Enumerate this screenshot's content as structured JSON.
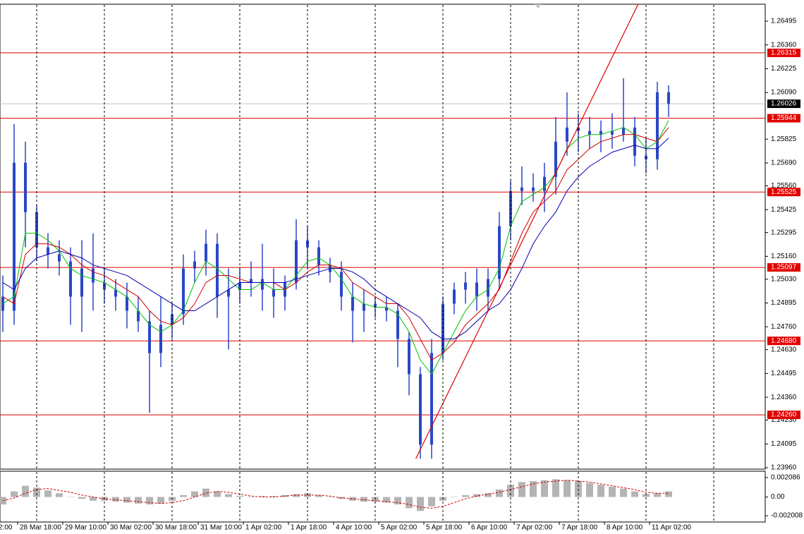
{
  "chart_data": [
    {
      "type": "candlestick",
      "color": "#2a47c8",
      "x_labels": [
        "2:00",
        "28 Mar 18:00",
        "29 Mar 10:00",
        "30 Mar 02:00",
        "30 Mar 18:00",
        "31 Mar 10:00",
        "1 Apr 02:00",
        "1 Apr 18:00",
        "4 Apr 10:00",
        "5 Apr 02:00",
        "5 Apr 18:00",
        "6 Apr 10:00",
        "7 Apr 02:00",
        "7 Apr 18:00",
        "8 Apr 10:00",
        "11 Apr 02:00"
      ],
      "open": [
        1.24931,
        1.24851,
        1.25691,
        1.25411,
        1.25211,
        1.25171,
        1.25131,
        1.24931,
        1.25091,
        1.25011,
        1.24971,
        1.24931,
        1.24851,
        1.24791,
        1.24611,
        1.24771,
        1.24831,
        1.25091,
        1.25131,
        1.25231,
        1.24931,
        1.24971,
        1.25011,
        1.25031,
        1.24971,
        1.24931,
        1.25011,
        1.25251,
        1.25211,
        1.25111,
        1.25071,
        1.24931,
        1.24851,
        1.24891,
        1.24871,
        1.24851,
        1.24691,
        1.24491,
        1.24091,
        1.24611,
        1.24891,
        1.24971,
        1.25011,
        1.24931,
        1.25031,
        1.25331,
        1.25531,
        1.25551,
        1.25531,
        1.25611,
        1.25811,
        1.25891,
        1.25871,
        1.25851,
        1.25871,
        1.25851,
        1.25891,
        1.25731,
        1.25711,
        1.26091
      ],
      "high": [
        1.25051,
        1.25911,
        1.25811,
        1.25451,
        1.25291,
        1.25251,
        1.25211,
        1.25251,
        1.25291,
        1.25091,
        1.25031,
        1.25011,
        1.24931,
        1.24851,
        1.24931,
        1.24891,
        1.25171,
        1.25191,
        1.25311,
        1.25291,
        1.25091,
        1.25091,
        1.25131,
        1.25231,
        1.25091,
        1.25051,
        1.25371,
        1.25331,
        1.25251,
        1.25151,
        1.25131,
        1.25011,
        1.24971,
        1.24931,
        1.24931,
        1.24891,
        1.24731,
        1.24531,
        1.24691,
        1.24931,
        1.25011,
        1.25071,
        1.25091,
        1.25091,
        1.25411,
        1.25591,
        1.25671,
        1.25631,
        1.25691,
        1.25951,
        1.26091,
        1.25971,
        1.25951,
        1.25931,
        1.25971,
        1.26171,
        1.25951,
        1.25831,
        1.26151,
        1.26131
      ],
      "low": [
        1.24731,
        1.24771,
        1.25211,
        1.25131,
        1.25091,
        1.25051,
        1.24771,
        1.24731,
        1.24851,
        1.24891,
        1.24851,
        1.24751,
        1.24731,
        1.24271,
        1.24531,
        1.24691,
        1.24771,
        1.25011,
        1.25051,
        1.24811,
        1.24631,
        1.24891,
        1.24931,
        1.24851,
        1.24811,
        1.24851,
        1.24971,
        1.25091,
        1.25051,
        1.25011,
        1.24851,
        1.24671,
        1.24731,
        1.24811,
        1.24791,
        1.24531,
        1.24371,
        1.24011,
        1.24011,
        1.24571,
        1.24831,
        1.24891,
        1.24851,
        1.24851,
        1.24971,
        1.25251,
        1.25451,
        1.25471,
        1.25411,
        1.25511,
        1.25731,
        1.25751,
        1.25771,
        1.25751,
        1.25771,
        1.25811,
        1.25671,
        1.25631,
        1.25651,
        1.25951
      ],
      "close": [
        1.24851,
        1.25691,
        1.25411,
        1.25211,
        1.25171,
        1.25131,
        1.24931,
        1.25091,
        1.25011,
        1.24971,
        1.24931,
        1.24851,
        1.24791,
        1.24611,
        1.24771,
        1.24831,
        1.25091,
        1.25131,
        1.25231,
        1.24931,
        1.24971,
        1.25011,
        1.25031,
        1.24971,
        1.24931,
        1.25011,
        1.25251,
        1.25211,
        1.25111,
        1.25071,
        1.24931,
        1.24851,
        1.24891,
        1.24871,
        1.24851,
        1.24691,
        1.24491,
        1.24091,
        1.24611,
        1.24891,
        1.24971,
        1.25011,
        1.24931,
        1.25031,
        1.25331,
        1.25531,
        1.25551,
        1.25531,
        1.25611,
        1.25811,
        1.25891,
        1.25871,
        1.25851,
        1.25871,
        1.25851,
        1.25891,
        1.25731,
        1.25711,
        1.26091,
        1.26026
      ],
      "series": [
        {
          "color": "#00c000",
          "values": [
            1.24891,
            1.24931,
            1.25291,
            1.25291,
            1.25251,
            1.25191,
            1.25091,
            1.25051,
            1.25031,
            1.25011,
            1.24971,
            1.24931,
            1.24851,
            1.24771,
            1.24731,
            1.24771,
            1.24851,
            1.25011,
            1.25131,
            1.25091,
            1.25031,
            1.24971,
            1.24971,
            1.25011,
            1.24971,
            1.24971,
            1.25051,
            1.25131,
            1.25151,
            1.25111,
            1.25031,
            1.24931,
            1.24891,
            1.24871,
            1.24871,
            1.24831,
            1.24731,
            1.24571,
            1.24491,
            1.24611,
            1.24731,
            1.24851,
            1.24931,
            1.24971,
            1.25091,
            1.25331,
            1.25471,
            1.25511,
            1.25551,
            1.25631,
            1.25771,
            1.25831,
            1.25851,
            1.25851,
            1.25871,
            1.25891,
            1.25851,
            1.25771,
            1.25811,
            1.25931
          ]
        },
        {
          "color": "#d00000",
          "values": [
            1.24931,
            1.24891,
            1.25171,
            1.25231,
            1.25231,
            1.25211,
            1.25171,
            1.25111,
            1.25071,
            1.25051,
            1.25011,
            1.24971,
            1.24931,
            1.24851,
            1.24791,
            1.24771,
            1.24811,
            1.24891,
            1.25011,
            1.25051,
            1.25051,
            1.25031,
            1.25011,
            1.25011,
            1.25011,
            1.24971,
            1.25011,
            1.25071,
            1.25111,
            1.25111,
            1.25091,
            1.25011,
            1.24971,
            1.24931,
            1.24891,
            1.24891,
            1.24811,
            1.24691,
            1.24571,
            1.24611,
            1.24671,
            1.24771,
            1.24831,
            1.24891,
            1.24971,
            1.25131,
            1.25291,
            1.25411,
            1.25471,
            1.25531,
            1.25651,
            1.25711,
            1.25771,
            1.25811,
            1.25831,
            1.25851,
            1.25851,
            1.25831,
            1.25811,
            1.25891
          ]
        },
        {
          "color": "#0000b0",
          "values": [
            1.25011,
            1.24971,
            1.25091,
            1.25151,
            1.25171,
            1.25191,
            1.25171,
            1.25151,
            1.25111,
            1.25091,
            1.25071,
            1.25051,
            1.25011,
            1.24971,
            1.24931,
            1.24891,
            1.24851,
            1.24851,
            1.24891,
            1.24931,
            1.24971,
            1.25011,
            1.25011,
            1.25011,
            1.25011,
            1.25011,
            1.25031,
            1.25051,
            1.25071,
            1.25091,
            1.25091,
            1.25071,
            1.25031,
            1.24971,
            1.24931,
            1.24891,
            1.24851,
            1.24811,
            1.24731,
            1.24691,
            1.24691,
            1.24731,
            1.24791,
            1.24851,
            1.24891,
            1.24971,
            1.25091,
            1.25231,
            1.25331,
            1.25411,
            1.25531,
            1.25611,
            1.25671,
            1.25711,
            1.25751,
            1.25771,
            1.25791,
            1.25771,
            1.25771,
            1.25831
          ]
        }
      ],
      "levels": [
        1.26315,
        1.25944,
        1.25525,
        1.25097,
        {
          "value": 1.2468,
          "label": "1.24680"
        },
        {
          "value": 1.2426,
          "label": "1.24260"
        }
      ],
      "level_color": "#e00000",
      "last_price": 1.26026,
      "trendline": {
        "x": [
          36.6,
          56.3
        ],
        "y": [
          1.24011,
          1.26591
        ]
      },
      "ylim": [
        1.23952,
        1.26591
      ],
      "yticks": [
        1.26495,
        {
          "value": 1.2636,
          "label": "1.26360"
        },
        1.26225,
        {
          "value": 1.2609,
          "label": "1.26090"
        },
        1.25825,
        {
          "value": 1.2569,
          "label": "1.25690"
        },
        {
          "value": 1.2556,
          "label": "1.25560"
        },
        1.25425,
        1.25295,
        {
          "value": 1.2516,
          "label": "1.25160"
        },
        {
          "value": 1.2503,
          "label": "1.25030"
        },
        1.24895,
        {
          "value": 1.2476,
          "label": "1.24760"
        },
        {
          "value": 1.2463,
          "label": "1.24630"
        },
        1.24495,
        {
          "value": 1.2436,
          "label": "1.24360"
        },
        {
          "value": 1.2423,
          "label": "1.24230"
        },
        1.24095,
        {
          "value": 1.2396,
          "label": "1.23960"
        }
      ]
    },
    {
      "type": "macd",
      "color": "#b4b4b4",
      "signal_color": "#d00000",
      "values": [
        -0.0008,
        0.0006,
        0.0012,
        0.001,
        0.0007,
        0.0004,
        0.0,
        -0.0002,
        -0.0004,
        -0.0004,
        -0.0005,
        -0.0006,
        -0.0007,
        -0.0008,
        -0.0007,
        -0.0004,
        0.0002,
        0.0006,
        0.0009,
        0.0006,
        0.0003,
        0.0001,
        0.0,
        0.0001,
        0.0001,
        0.0002,
        0.0003,
        0.0004,
        0.0002,
        0.0,
        -0.0002,
        -0.0004,
        -0.0005,
        -0.0005,
        -0.0006,
        -0.0008,
        -0.0012,
        -0.0015,
        -0.001,
        -0.0004,
        0.0,
        0.0002,
        0.0003,
        0.0004,
        0.0008,
        0.0013,
        0.0016,
        0.0017,
        0.0018,
        0.0019,
        0.0018,
        0.0017,
        0.0015,
        0.0013,
        0.0011,
        0.0009,
        0.0006,
        0.0003,
        0.0004,
        0.0006
      ],
      "signal": [
        -0.0004,
        -0.0001,
        0.0004,
        0.0008,
        0.0009,
        0.0007,
        0.0005,
        0.0002,
        0.0,
        -0.0002,
        -0.0003,
        -0.0004,
        -0.0005,
        -0.0006,
        -0.0007,
        -0.0006,
        -0.0004,
        0.0,
        0.0004,
        0.0006,
        0.0005,
        0.0003,
        0.0001,
        0.0,
        0.0,
        0.0001,
        0.0002,
        0.0002,
        0.0002,
        0.0001,
        -0.0001,
        -0.0002,
        -0.0003,
        -0.0004,
        -0.0005,
        -0.0006,
        -0.0008,
        -0.0011,
        -0.0012,
        -0.001,
        -0.0006,
        -0.0002,
        0.0001,
        0.0003,
        0.0005,
        0.0008,
        0.0011,
        0.0014,
        0.0016,
        0.0017,
        0.0018,
        0.0017,
        0.0016,
        0.0014,
        0.0012,
        0.001,
        0.0008,
        0.0005,
        0.0004,
        0.0004
      ],
      "ylim": [
        -0.00268,
        0.00276
      ],
      "yticks": [
        0.002086,
        {
          "value": 0,
          "label": "0.00"
        },
        -0.002008
      ]
    }
  ]
}
